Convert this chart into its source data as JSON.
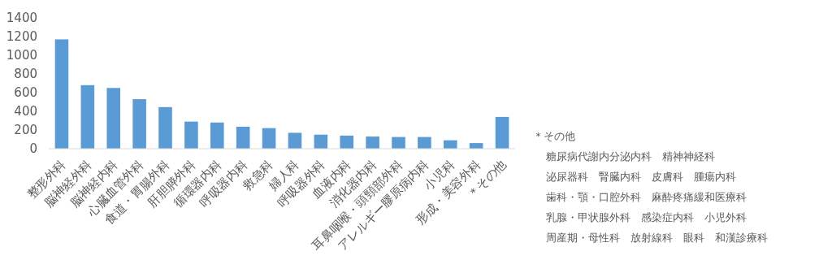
{
  "chart_data": {
    "type": "bar",
    "categories": [
      "整形外科",
      "脳神経外科",
      "脳神経内科",
      "心臓血管外科",
      "食道・胃腸外科",
      "肝胆膵外科",
      "循環器内科",
      "呼吸器内科",
      "救急科",
      "婦人科",
      "呼吸器外科",
      "血液内科",
      "消化器内科",
      "耳鼻咽喉・頭頸部外科",
      "アレルギー膠原病内科",
      "小児科",
      "形成・美容外科",
      "＊その他"
    ],
    "values": [
      1170,
      680,
      650,
      530,
      445,
      290,
      280,
      235,
      220,
      170,
      150,
      140,
      130,
      125,
      125,
      90,
      60,
      340
    ],
    "color": "#5b9bd5",
    "ylim": [
      0,
      1400
    ],
    "yticks": [
      0,
      200,
      400,
      600,
      800,
      1000,
      1200,
      1400
    ],
    "grid": false,
    "annotations": [
      "＊その他",
      "糖尿病代謝内分泌内科　精神神経科",
      "泌尿器科　腎臓内科　皮膚科　腫瘍内科",
      "歯科・顎・口腔外科　麻酔疼痛緩和医療科",
      "乳腺・甲状腺外科　感染症内科　小児外科",
      "周産期・母性科　放射線科　眼科　和漢診療科"
    ]
  }
}
